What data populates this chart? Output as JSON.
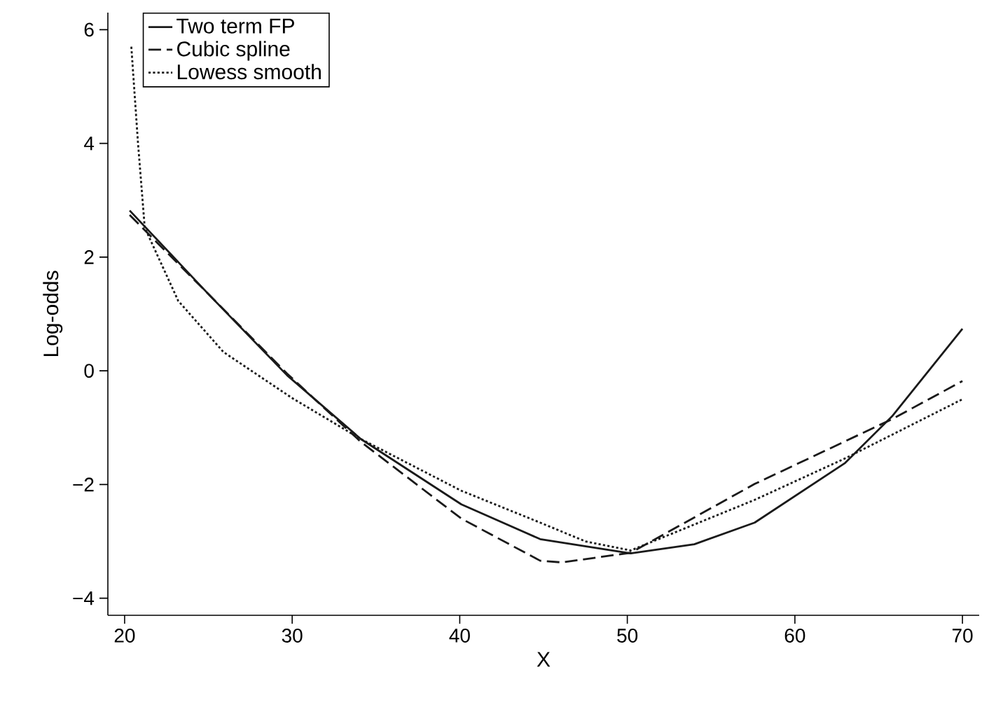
{
  "chart_data": {
    "type": "line",
    "xlabel": "X",
    "ylabel": "Log-odds",
    "xlim": [
      19,
      71
    ],
    "ylim": [
      -4.3,
      6.3
    ],
    "xticks": [
      20,
      30,
      40,
      50,
      60,
      70
    ],
    "yticks": [
      {
        "value": -4,
        "label": "−4"
      },
      {
        "value": -2,
        "label": "−2"
      },
      0,
      2,
      4,
      6
    ],
    "legend": "top left",
    "grid": false,
    "series": [
      {
        "name": "Two term FP",
        "color": "#1a1a1a",
        "line_style": "solid",
        "x": [
          20.3,
          25,
          29.7,
          34.1,
          40.1,
          44.8,
          50.2,
          54,
          57.6,
          63,
          65.8,
          70
        ],
        "values": [
          2.82,
          1.35,
          -0.08,
          -1.2,
          -2.35,
          -2.96,
          -3.21,
          -3.05,
          -2.67,
          -1.62,
          -0.8,
          0.74
        ]
      },
      {
        "name": "Cubic spline",
        "color": "#1a1a1a",
        "line_style": "dashed",
        "x": [
          20.3,
          25,
          29.7,
          34.1,
          40.1,
          44.8,
          46.1,
          50.2,
          57.6,
          65.8,
          70
        ],
        "values": [
          2.74,
          1.35,
          -0.05,
          -1.25,
          -2.6,
          -3.34,
          -3.37,
          -3.2,
          -1.99,
          -0.85,
          -0.18
        ]
      },
      {
        "name": "Lowess smooth",
        "color": "#1a1a1a",
        "line_style": "dotted",
        "x": [
          20.4,
          20.8,
          21.2,
          23.2,
          25.9,
          30,
          34.1,
          40.1,
          44.8,
          47.5,
          50.2,
          57.6,
          63,
          70
        ],
        "values": [
          5.7,
          4.0,
          2.52,
          1.23,
          0.33,
          -0.48,
          -1.2,
          -2.11,
          -2.67,
          -3.0,
          -3.16,
          -2.27,
          -1.54,
          -0.5
        ]
      }
    ]
  }
}
